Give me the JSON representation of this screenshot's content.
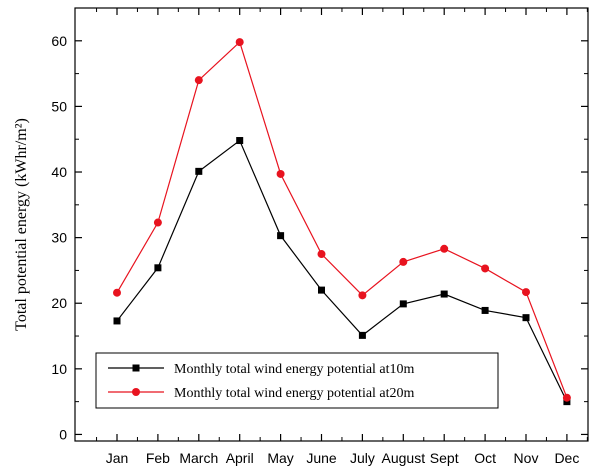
{
  "chart_data": {
    "type": "line",
    "categories": [
      "Jan",
      "Feb",
      "March",
      "April",
      "May",
      "June",
      "July",
      "August",
      "Sept",
      "Oct",
      "Nov",
      "Dec"
    ],
    "series": [
      {
        "name": "Monthly total wind energy potential at10m",
        "color": "#000000",
        "marker": "square",
        "values": [
          17.3,
          25.4,
          40.1,
          44.8,
          30.3,
          22.0,
          15.1,
          19.9,
          21.4,
          18.9,
          17.8,
          5.0
        ]
      },
      {
        "name": "Monthly total wind energy potential at20m",
        "color": "#e8131f",
        "marker": "circle",
        "values": [
          21.6,
          32.3,
          54.0,
          59.8,
          39.7,
          27.5,
          21.2,
          26.3,
          28.3,
          25.3,
          21.7,
          5.6
        ]
      }
    ],
    "xlabel": "",
    "ylabel": "Total potential energy (kWhr/m²)",
    "ylim": [
      -1,
      65
    ],
    "yticks": [
      0,
      10,
      20,
      30,
      40,
      50,
      60
    ],
    "legend_position": "bottom-left",
    "grid": false
  }
}
